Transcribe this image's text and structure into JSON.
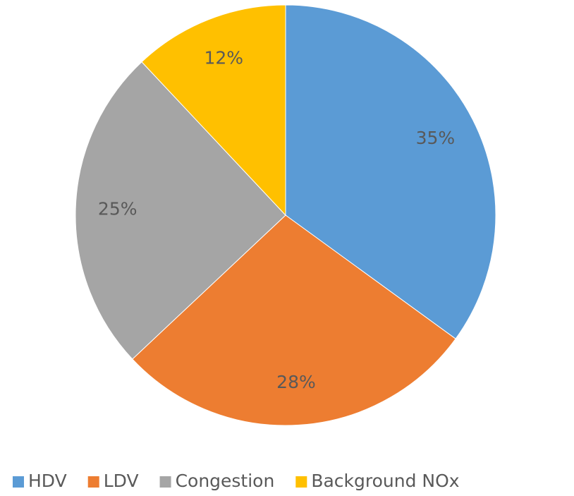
{
  "chart_data": {
    "type": "pie",
    "categories": [
      "HDV",
      "LDV",
      "Congestion",
      "Background NOx"
    ],
    "values": [
      35,
      28,
      25,
      12
    ],
    "value_labels": [
      "35%",
      "28%",
      "25%",
      "12%"
    ],
    "colors": [
      "#5b9bd5",
      "#ed7d31",
      "#a5a5a5",
      "#ffc000"
    ],
    "legend": "bottom"
  }
}
